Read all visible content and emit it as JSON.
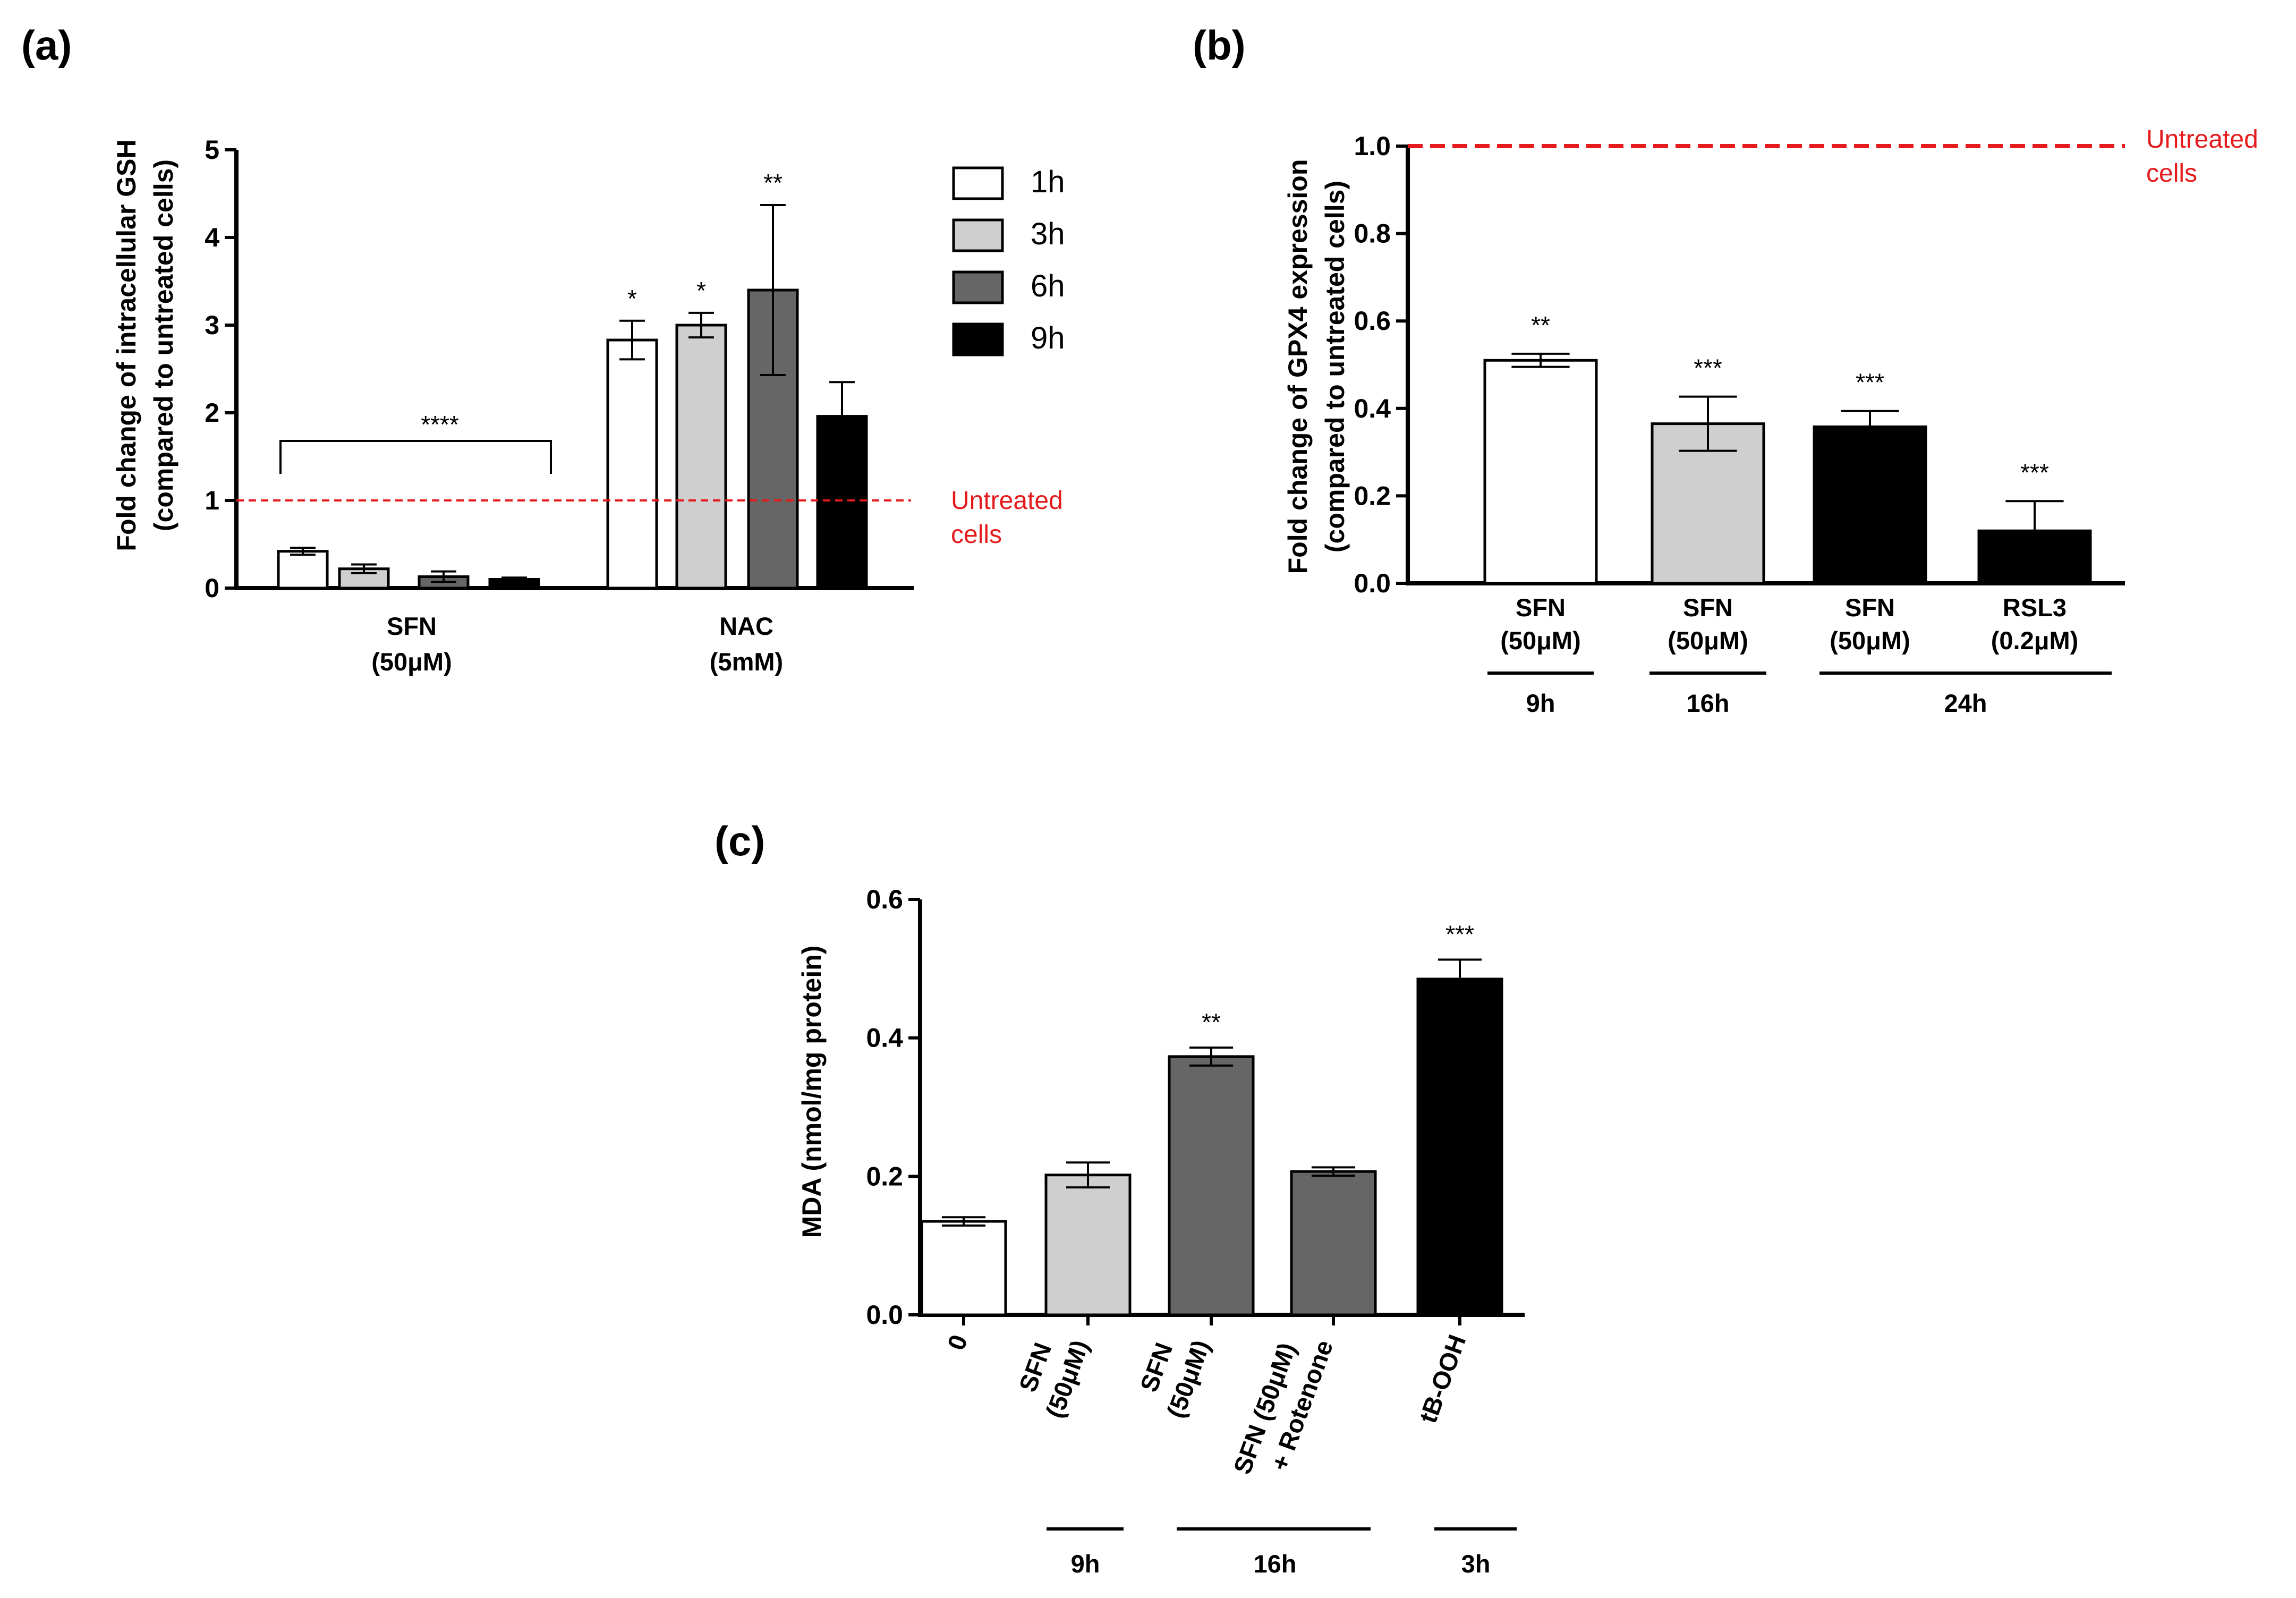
{
  "colors": {
    "white": "#ffffff",
    "light_gray": "#cfcfcf",
    "dark_gray": "#666666",
    "black": "#000000",
    "reference_red": "#e41a1c"
  },
  "chart_data": [
    {
      "panel": "(a)",
      "type": "bar",
      "ylabel_line1": "Fold  change of intracellular GSH",
      "ylabel_line2": "(compared to untreated cells)",
      "ylim": [
        0,
        5
      ],
      "yticks": [
        "0",
        "1",
        "2",
        "3",
        "4",
        "5"
      ],
      "groups": [
        {
          "line1": "SFN",
          "line2": "(50μM)"
        },
        {
          "line1": "NAC",
          "line2": "(5mM)"
        }
      ],
      "series": [
        {
          "name": "1h",
          "color": "#ffffff",
          "values": [
            0.42,
            2.83
          ],
          "errors": [
            0.04,
            0.22
          ],
          "stars": [
            "",
            "*"
          ]
        },
        {
          "name": "3h",
          "color": "#cfcfcf",
          "values": [
            0.22,
            3.0
          ],
          "errors": [
            0.05,
            0.14
          ],
          "stars": [
            "",
            "*"
          ]
        },
        {
          "name": "6h",
          "color": "#666666",
          "values": [
            0.13,
            3.4
          ],
          "errors": [
            0.06,
            0.97
          ],
          "stars": [
            "",
            "**"
          ]
        },
        {
          "name": "9h",
          "color": "#000000",
          "values": [
            0.1,
            1.96
          ],
          "errors": [
            0.02,
            0.39
          ],
          "stars": [
            "",
            ""
          ]
        }
      ],
      "bracket_label": "****",
      "reference_line": {
        "value": 1,
        "label_line1": "Untreated",
        "label_line2": "cells"
      }
    },
    {
      "panel": "(b)",
      "type": "bar",
      "ylabel_line1": "Fold change of GPX4 expression",
      "ylabel_line2": "(compared to untreated cells)",
      "ylim": [
        0,
        1.0
      ],
      "yticks": [
        "0.0",
        "0.2",
        "0.4",
        "0.6",
        "0.8",
        "1.0"
      ],
      "bars": [
        {
          "line1": "SFN",
          "line2": "(50μM)",
          "value": 0.51,
          "error": 0.015,
          "color": "#ffffff",
          "stars": "**"
        },
        {
          "line1": "SFN",
          "line2": "(50μM)",
          "value": 0.365,
          "error": 0.062,
          "color": "#cfcfcf",
          "stars": "***"
        },
        {
          "line1": "SFN",
          "line2": "(50μM)",
          "value": 0.358,
          "error": 0.036,
          "color": "#000000",
          "stars": "***"
        },
        {
          "line1": "RSL3",
          "line2": "(0.2μM)",
          "value": 0.12,
          "error": 0.068,
          "color": "#000000",
          "stars": "***"
        }
      ],
      "time_groups": [
        "9h",
        "16h",
        "24h"
      ],
      "reference_line": {
        "value": 1.0,
        "label_line1": "Untreated",
        "label_line2": "cells"
      }
    },
    {
      "panel": "(c)",
      "type": "bar",
      "ylabel": "MDA (nmol/mg protein)",
      "ylim": [
        0,
        0.6
      ],
      "yticks": [
        "0.0",
        "0.2",
        "0.4",
        "0.6"
      ],
      "bars": [
        {
          "line1": "0",
          "line2": "",
          "value": 0.135,
          "error": 0.006,
          "color": "#ffffff",
          "stars": ""
        },
        {
          "line1": "SFN",
          "line2": "(50μM)",
          "value": 0.202,
          "error": 0.018,
          "color": "#cfcfcf",
          "stars": ""
        },
        {
          "line1": "SFN",
          "line2": "(50μM)",
          "value": 0.373,
          "error": 0.013,
          "color": "#666666",
          "stars": "**"
        },
        {
          "line1": "SFN (50μM)",
          "line2": "+ Rotenone",
          "value": 0.207,
          "error": 0.006,
          "color": "#666666",
          "stars": ""
        },
        {
          "line1": "tB-OOH",
          "line2": "",
          "value": 0.485,
          "error": 0.028,
          "color": "#000000",
          "stars": "***"
        }
      ],
      "time_groups": [
        "9h",
        "16h",
        "3h"
      ]
    }
  ]
}
